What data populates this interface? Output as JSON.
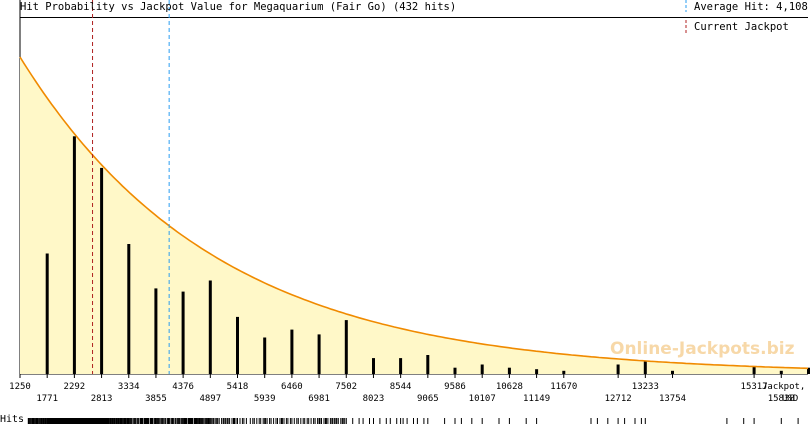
{
  "chart_data": {
    "type": "bar",
    "title": "Hit Probability vs Jackpot Value for Megaquarium (Fair Go) (432 hits)",
    "xlabel": "Jackpot, USD",
    "xlabel_line1": "Jackpot,",
    "xlabel_line2": "USD",
    "ylabel": "",
    "xlim": [
      1250,
      16350
    ],
    "ylim": [
      0,
      100
    ],
    "grid": false,
    "legend_placement": "top-right",
    "average_hit": 4108,
    "average_label": "Average Hit: 4,108",
    "current_jackpot": 2640,
    "current_label": "Current Jackpot",
    "watermark": "Online-Jackpots.biz",
    "hits_label": "Hits",
    "tick_labels_upper": [
      "1250",
      "2292",
      "3334",
      "4376",
      "5418",
      "6460",
      "7502",
      "8544",
      "9586",
      "10628",
      "11670",
      "13233",
      "15317"
    ],
    "tick_labels_lower": [
      "1771",
      "2813",
      "3855",
      "4897",
      "5939",
      "6981",
      "8023",
      "9065",
      "10107",
      "11149",
      "12712",
      "13754",
      "15838"
    ],
    "bars": {
      "x": [
        1771,
        2292,
        2813,
        3334,
        3855,
        4376,
        4897,
        5418,
        5939,
        6460,
        6981,
        7502,
        8023,
        8544,
        9065,
        9586,
        10107,
        10628,
        11149,
        11670,
        12712,
        13233,
        13754,
        15317,
        15838,
        16359
      ],
      "values": [
        38,
        75,
        65,
        41,
        27,
        26,
        29.5,
        18,
        11.5,
        14,
        12.5,
        17,
        5,
        5,
        6,
        2,
        3,
        2,
        1.5,
        1,
        3,
        4,
        1,
        2.2,
        1,
        2
      ]
    },
    "curve": {
      "type": "exponential",
      "x": [
        1250,
        2292,
        3334,
        4376,
        5418,
        6460,
        7502,
        8544,
        9586,
        10628,
        11670,
        13233,
        15317,
        16350
      ],
      "values": [
        100,
        76,
        57.5,
        43.5,
        33,
        25,
        19,
        14.3,
        10.8,
        8.2,
        6.2,
        4.1,
        2.3,
        1.8
      ]
    },
    "colors": {
      "bar": "#000000",
      "curve": "#f08a00",
      "fill": "#fff8c8",
      "average_line": "#2a9df0",
      "current_line": "#b02020",
      "watermark": "#f7d8a8"
    }
  }
}
